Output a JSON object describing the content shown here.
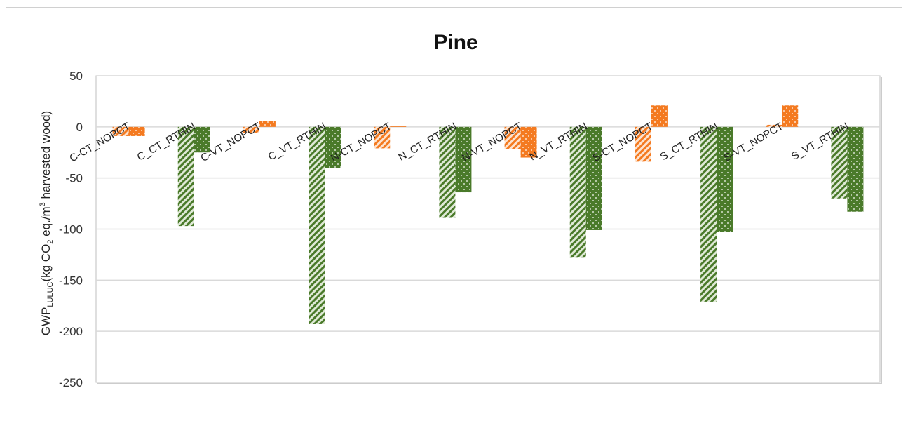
{
  "chart_data": {
    "type": "bar",
    "title": "Pine",
    "ylabel": "GWP",
    "ylabel_sub": "LULUC",
    "ylabel_rest": "(kg CO",
    "ylabel_sub2": "2",
    "ylabel_rest2": " eq./m",
    "ylabel_sup": "3",
    "ylabel_rest3": " harvested wood)",
    "ylim": [
      -250,
      50
    ],
    "yticks": [
      "50",
      "0",
      "-50",
      "-100",
      "-150",
      "-200",
      "-250"
    ],
    "grid": true,
    "categories": [
      "C-CT_NOPCT",
      "C_CT_RTHIN",
      "C-VT_NOPCT",
      "C_VT_RTHIN",
      "N-CT_NOPCT",
      "N_CT_RTHIN",
      "N-VT_NOPCT",
      "N_VT_RTHIN",
      "S-CT_NOPCT",
      "S_CT_RTHIN",
      "S-VT_NOPCT",
      "S_VT_RTHIN"
    ],
    "series": [
      {
        "pattern": "hatched",
        "values": [
          -9,
          -97,
          -6,
          -193,
          -21,
          -89,
          -22,
          -128,
          -34,
          -171,
          2,
          -70
        ]
      },
      {
        "pattern": "dotted",
        "values": [
          -9,
          -25,
          6,
          -40,
          1,
          -64,
          -30,
          -101,
          21,
          -103,
          21,
          -83
        ]
      }
    ],
    "colors": {
      "nopct": "#f47a20",
      "rthin": "#4a7a2a",
      "grid": "#d9d9d9"
    }
  }
}
